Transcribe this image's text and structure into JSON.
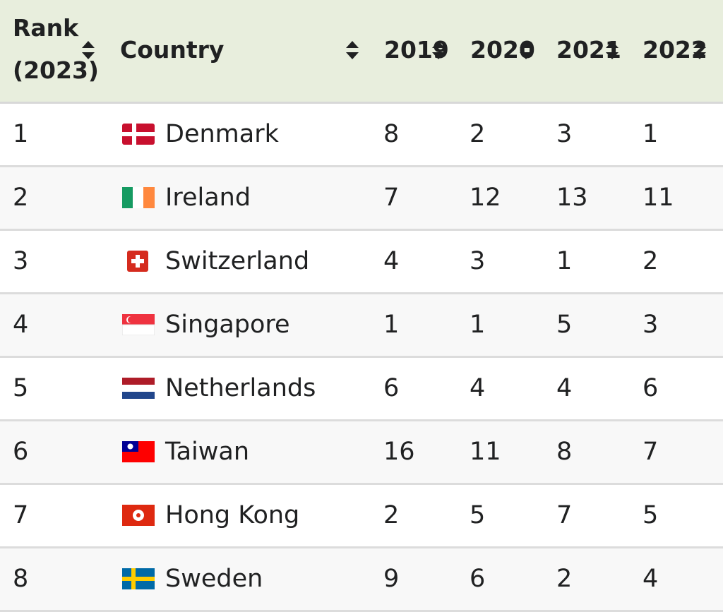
{
  "table": {
    "header": [
      "Rank (2023)",
      "Country",
      "2019",
      "2020",
      "2021",
      "2022"
    ],
    "rows": [
      [
        1,
        "Denmark",
        8,
        2,
        3,
        1
      ],
      [
        2,
        "Ireland",
        7,
        12,
        13,
        11
      ],
      [
        3,
        "Switzerland",
        4,
        3,
        1,
        2
      ],
      [
        4,
        "Singapore",
        1,
        1,
        5,
        3
      ],
      [
        5,
        "Netherlands",
        6,
        4,
        4,
        6
      ],
      [
        6,
        "Taiwan",
        16,
        11,
        8,
        7
      ],
      [
        7,
        "Hong Kong",
        2,
        5,
        7,
        5
      ],
      [
        8,
        "Sweden",
        9,
        6,
        2,
        4
      ]
    ]
  }
}
